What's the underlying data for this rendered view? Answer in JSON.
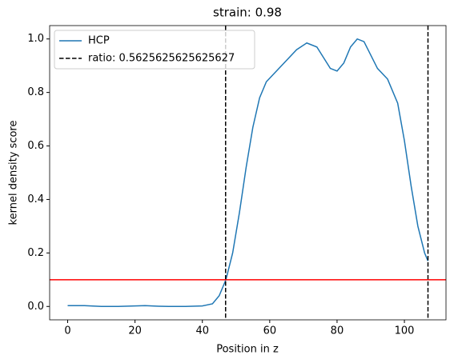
{
  "chart_data": {
    "type": "line",
    "title": "strain: 0.98",
    "x_label": "Position in z",
    "y_label": "kernel density score",
    "xlim": [
      -5.35,
      112.35
    ],
    "ylim": [
      -0.05,
      1.05
    ],
    "xticks": [
      0,
      20,
      40,
      60,
      80,
      100
    ],
    "yticks": [
      {
        "value": 0,
        "label": "0.0"
      },
      {
        "value": 0.2,
        "label": "0.2"
      },
      {
        "value": 0.4,
        "label": "0.4"
      },
      {
        "value": 0.6,
        "label": "0.6"
      },
      {
        "value": 0.8,
        "label": "0.8"
      },
      {
        "value": 1,
        "label": "1.0"
      }
    ],
    "legend": "upper left",
    "series": [
      {
        "name": "HCP",
        "color": "#1f77b4",
        "x": [
          0,
          5,
          10,
          15,
          20,
          23,
          27,
          30,
          35,
          40,
          43,
          45,
          47,
          49,
          51,
          53,
          55,
          57,
          59,
          62,
          65,
          68,
          71,
          74,
          76,
          78,
          80,
          82,
          84,
          86,
          88,
          90,
          92,
          95,
          98,
          100,
          102,
          104,
          106,
          107
        ],
        "values": [
          0.003,
          0.003,
          0.0,
          0.0,
          0.002,
          0.003,
          0.001,
          0.0,
          0.0,
          0.002,
          0.01,
          0.04,
          0.1,
          0.2,
          0.35,
          0.52,
          0.67,
          0.78,
          0.84,
          0.88,
          0.92,
          0.96,
          0.985,
          0.97,
          0.93,
          0.89,
          0.88,
          0.91,
          0.97,
          1.0,
          0.99,
          0.94,
          0.89,
          0.85,
          0.76,
          0.62,
          0.45,
          0.3,
          0.2,
          0.17
        ]
      }
    ],
    "vlines": {
      "name": "ratio: 0.5625625625625627",
      "color": "#000000",
      "dashed": true,
      "x": [
        46.9,
        107
      ]
    },
    "hline": {
      "y": 0.1,
      "color": "#ff0000"
    }
  }
}
